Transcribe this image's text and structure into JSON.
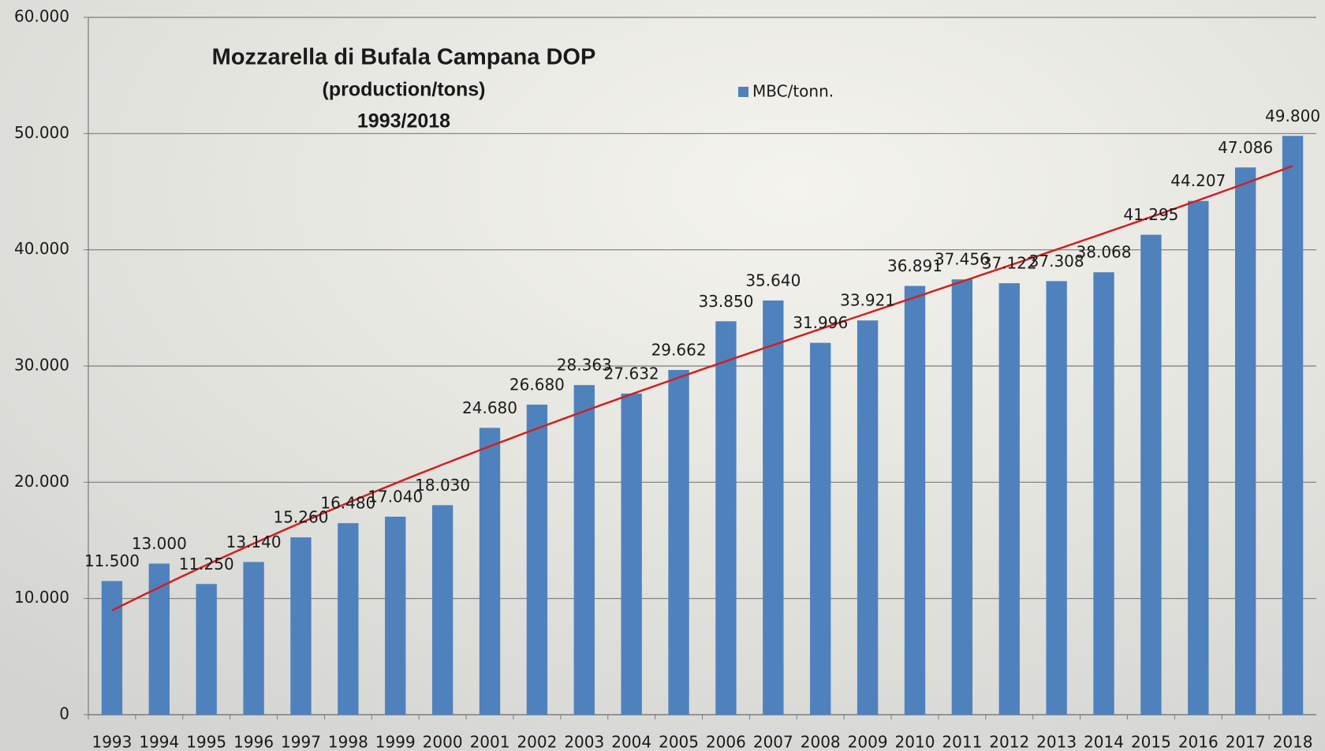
{
  "chart_data": {
    "type": "bar",
    "title": "Mozzarella di Bufala Campana DOP",
    "subtitle": "(production/tons)",
    "period": "1993/2018",
    "categories": [
      "1993",
      "1994",
      "1995",
      "1996",
      "1997",
      "1998",
      "1999",
      "2000",
      "2001",
      "2002",
      "2003",
      "2004",
      "2005",
      "2006",
      "2007",
      "2008",
      "2009",
      "2010",
      "2011",
      "2012",
      "2013",
      "2014",
      "2015",
      "2016",
      "2017",
      "2018"
    ],
    "series": [
      {
        "name": "MBC/tonn.",
        "color": "#4f81bd",
        "values": [
          11500,
          13000,
          11250,
          13140,
          15260,
          16480,
          17040,
          18030,
          24680,
          26680,
          28363,
          27632,
          29662,
          33850,
          35640,
          31996,
          33921,
          36891,
          37456,
          37122,
          37308,
          38068,
          41295,
          44207,
          47086,
          49800
        ],
        "value_labels": [
          "11.500",
          "13.000",
          "11.250",
          "13.140",
          "15.260",
          "16.480",
          "17.040",
          "18.030",
          "24.680",
          "26.680",
          "28.363",
          "27.632",
          "29.662",
          "33.850",
          "35.640",
          "31.996",
          "33.921",
          "36.891",
          "37.456",
          "37.122",
          "37.308",
          "38.068",
          "41.295",
          "44.207",
          "47.086",
          "49.800"
        ]
      }
    ],
    "trendline": {
      "color": "#d02020"
    },
    "ylim": [
      0,
      60000
    ],
    "yticks": [
      0,
      {
        "value": 10000,
        "label": "10.000"
      },
      {
        "value": 20000,
        "label": "20.000"
      },
      {
        "value": 30000,
        "label": "30.000"
      },
      {
        "value": 40000,
        "label": "40.000"
      },
      {
        "value": 50000,
        "label": "50.000"
      },
      {
        "value": 60000,
        "label": "60.000"
      }
    ],
    "grid": true
  }
}
